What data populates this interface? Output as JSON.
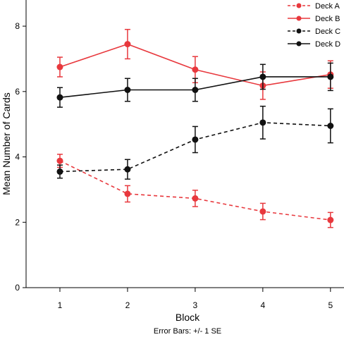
{
  "chart_data": {
    "type": "line",
    "title": "",
    "xlabel": "Block",
    "ylabel": "Mean Number of Cards",
    "footnote": "Error Bars: +/- 1 SE",
    "x": [
      1,
      2,
      3,
      4,
      5
    ],
    "x_tick_labels": [
      "1",
      "2",
      "3",
      "4",
      "5"
    ],
    "y_ticks": [
      0,
      2,
      4,
      6,
      8
    ],
    "y_tick_labels": [
      "0",
      "2",
      "4",
      "6",
      "8"
    ],
    "xlim": [
      0.5,
      5.2
    ],
    "ylim": [
      0,
      8.8
    ],
    "grid": false,
    "legend_position": "top-right",
    "series": [
      {
        "name": "Deck A",
        "color": "#e8383d",
        "dashed": true,
        "values": [
          3.88,
          2.87,
          2.73,
          2.33,
          2.07
        ],
        "errors": [
          0.2,
          0.25,
          0.25,
          0.25,
          0.23
        ]
      },
      {
        "name": "Deck B",
        "color": "#e8383d",
        "dashed": false,
        "values": [
          6.75,
          7.45,
          6.67,
          6.18,
          6.52
        ],
        "errors": [
          0.3,
          0.45,
          0.4,
          0.42,
          0.42
        ]
      },
      {
        "name": "Deck C",
        "color": "#111111",
        "dashed": true,
        "values": [
          3.55,
          3.62,
          4.53,
          5.05,
          4.95
        ],
        "errors": [
          0.2,
          0.3,
          0.4,
          0.5,
          0.52
        ]
      },
      {
        "name": "Deck D",
        "color": "#111111",
        "dashed": false,
        "values": [
          5.82,
          6.05,
          6.05,
          6.45,
          6.45
        ],
        "errors": [
          0.3,
          0.35,
          0.35,
          0.38,
          0.42
        ]
      }
    ]
  }
}
